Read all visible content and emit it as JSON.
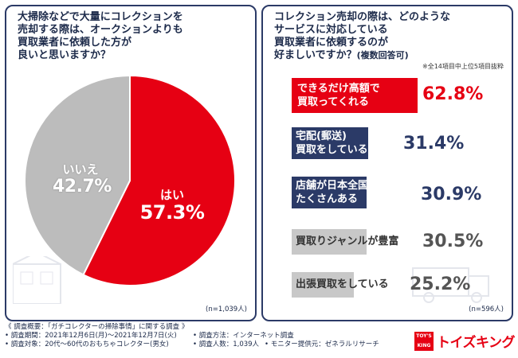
{
  "left_panel": {
    "question_lines": [
      "大掃除などで大量にコレクションを",
      "売却する際は、オークションよりも",
      "買取業者に依頼した方が",
      "良いと思いますか？"
    ],
    "sample_size": "(n=1,039人)"
  },
  "right_panel": {
    "question_lines": [
      "コレクション売却の際は、どのような",
      "サービスに対応している",
      "買取業者に依頼するのが",
      "好ましいですか？"
    ],
    "question_sub": "(複数回答可)",
    "note": "※全14項目中上位5項目抜粋",
    "sample_size": "(n=596人)"
  },
  "chart_data": [
    {
      "type": "pie",
      "title": "大掃除などで大量にコレクションを売却する際は、オークションよりも買取業者に依頼した方が良いと思いますか？",
      "slices": [
        {
          "label": "はい",
          "value": 57.3,
          "display": "57.3%",
          "color": "#e60013"
        },
        {
          "label": "いいえ",
          "value": 42.7,
          "display": "42.7%",
          "color": "#bcbcbc"
        }
      ],
      "n": "(n=1,039人)"
    },
    {
      "type": "bar",
      "title": "コレクション売却の際は、どのようなサービスに対応している買取業者に依頼するのが好ましいですか？",
      "categories": [
        [
          "できるだけ高額で",
          "買取ってくれる"
        ],
        [
          "宅配(郵送)",
          "買取をしている"
        ],
        [
          "店舗が日本全国に",
          "たくさんある"
        ],
        [
          "買取りジャンルが豊富"
        ],
        [
          "出張買取をしている"
        ]
      ],
      "values": [
        62.8,
        31.4,
        30.9,
        30.5,
        25.2
      ],
      "labels": [
        "62.8%",
        "31.4%",
        "30.9%",
        "30.5%",
        "25.2%"
      ],
      "n": "(n=596人)"
    }
  ],
  "footer": {
    "title": "《 調査概要：「ガチコレクターの掃除事情」に関する調査 》",
    "period": "• 調査期間：2021年12月6日(月)～2021年12月7日(火)",
    "target": "• 調査対象：20代～60代のおもちゃコレクター(男女)",
    "method": "• 調査方法：インターネット調査",
    "count": "• 調査人数：1,039人",
    "provider": "• モニター提供元：ゼネラルリサーチ"
  },
  "logo": {
    "box_text": "TOY'S KING",
    "text": "トイズキング"
  },
  "colors": {
    "red": "#e60013",
    "navy": "#2b3a67",
    "grey": "#c8c8c8"
  }
}
